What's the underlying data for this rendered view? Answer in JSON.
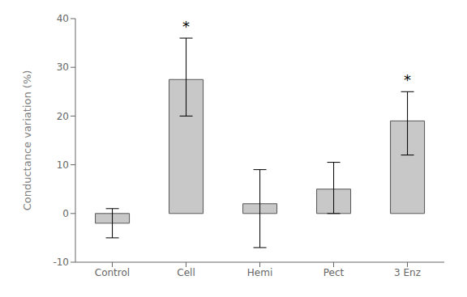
{
  "chart_data": {
    "type": "bar",
    "categories": [
      "Control",
      "Cell",
      "Hemi",
      "Pect",
      "3 Enz"
    ],
    "values": [
      -2.0,
      27.5,
      2.0,
      5.0,
      19.0
    ],
    "errors_lower": [
      3.0,
      7.5,
      9.0,
      5.0,
      7.0
    ],
    "errors_upper": [
      3.0,
      8.5,
      7.0,
      5.5,
      6.0
    ],
    "color": "#c8c8c8",
    "ylabel": "Conductance variation (%)",
    "ylim": [
      -10,
      40
    ],
    "yticks": [
      -10,
      0,
      10,
      20,
      30,
      40
    ],
    "grid": false,
    "annotations": [
      {
        "text": "*",
        "category": "Cell",
        "y": 36.5
      },
      {
        "text": "*",
        "category": "3 Enz",
        "y": 25.5
      }
    ]
  }
}
